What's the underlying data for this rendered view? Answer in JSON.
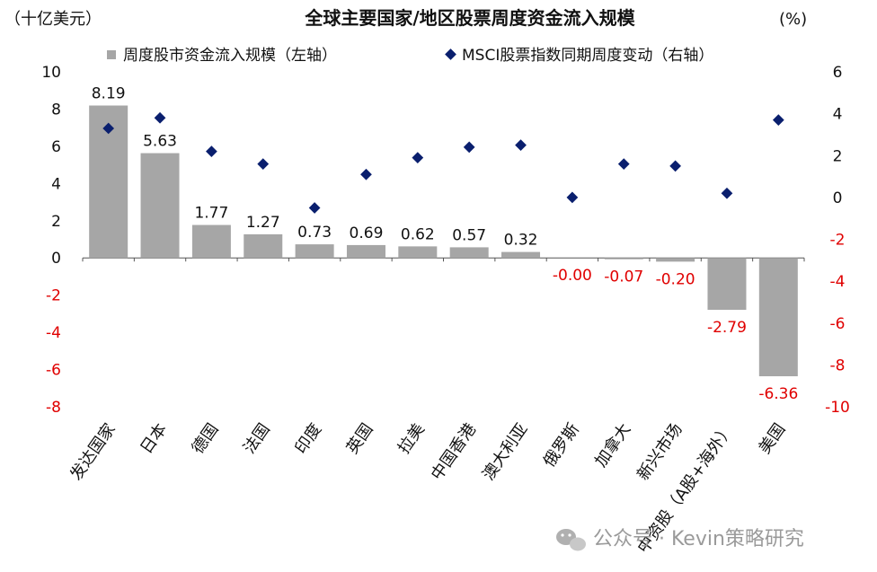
{
  "chart_data": {
    "type": "bar",
    "title": "全球主要国家/地区股票周度资金流入规模",
    "left_unit": "（十亿美元）",
    "right_unit": "(%)",
    "categories": [
      "发达国家",
      "日本",
      "德国",
      "法国",
      "印度",
      "英国",
      "拉美",
      "中国香港",
      "澳大利亚",
      "俄罗斯",
      "加拿大",
      "新兴市场",
      "中资股（A股+海外）",
      "美国"
    ],
    "series": [
      {
        "name": "周度股市资金流入规模（左轴）",
        "type": "bar",
        "axis": "left",
        "color": "#a6a6a6",
        "values": [
          8.19,
          5.63,
          1.77,
          1.27,
          0.73,
          0.69,
          0.62,
          0.57,
          0.32,
          -0.0,
          -0.07,
          -0.2,
          -2.79,
          -6.36
        ],
        "labels": [
          "8.19",
          "5.63",
          "1.77",
          "1.27",
          "0.73",
          "0.69",
          "0.62",
          "0.57",
          "0.32",
          "-0.00",
          "-0.07",
          "-0.20",
          "-2.79",
          "-6.36"
        ]
      },
      {
        "name": "MSCI股票指数同期周度变动（右轴）",
        "type": "scatter",
        "axis": "right",
        "color": "#0a1f6e",
        "values": [
          3.3,
          3.8,
          2.2,
          1.6,
          -0.5,
          1.1,
          1.9,
          2.4,
          2.5,
          0.0,
          1.6,
          1.5,
          0.2,
          3.7
        ]
      }
    ],
    "left_axis": {
      "ylim": [
        -8,
        10
      ],
      "ticks": [
        "10",
        "8",
        "6",
        "4",
        "2",
        "0",
        "-2",
        "-4",
        "-6",
        "-8"
      ]
    },
    "right_axis": {
      "ylim": [
        -10,
        6
      ],
      "ticks": [
        "6",
        "4",
        "2",
        "0",
        "-2",
        "-4",
        "-6",
        "-8",
        "-10"
      ]
    },
    "negative_color": "#e00000",
    "grid": false,
    "legend_position": "top"
  },
  "watermark": "公众号 · Kevin策略研究"
}
